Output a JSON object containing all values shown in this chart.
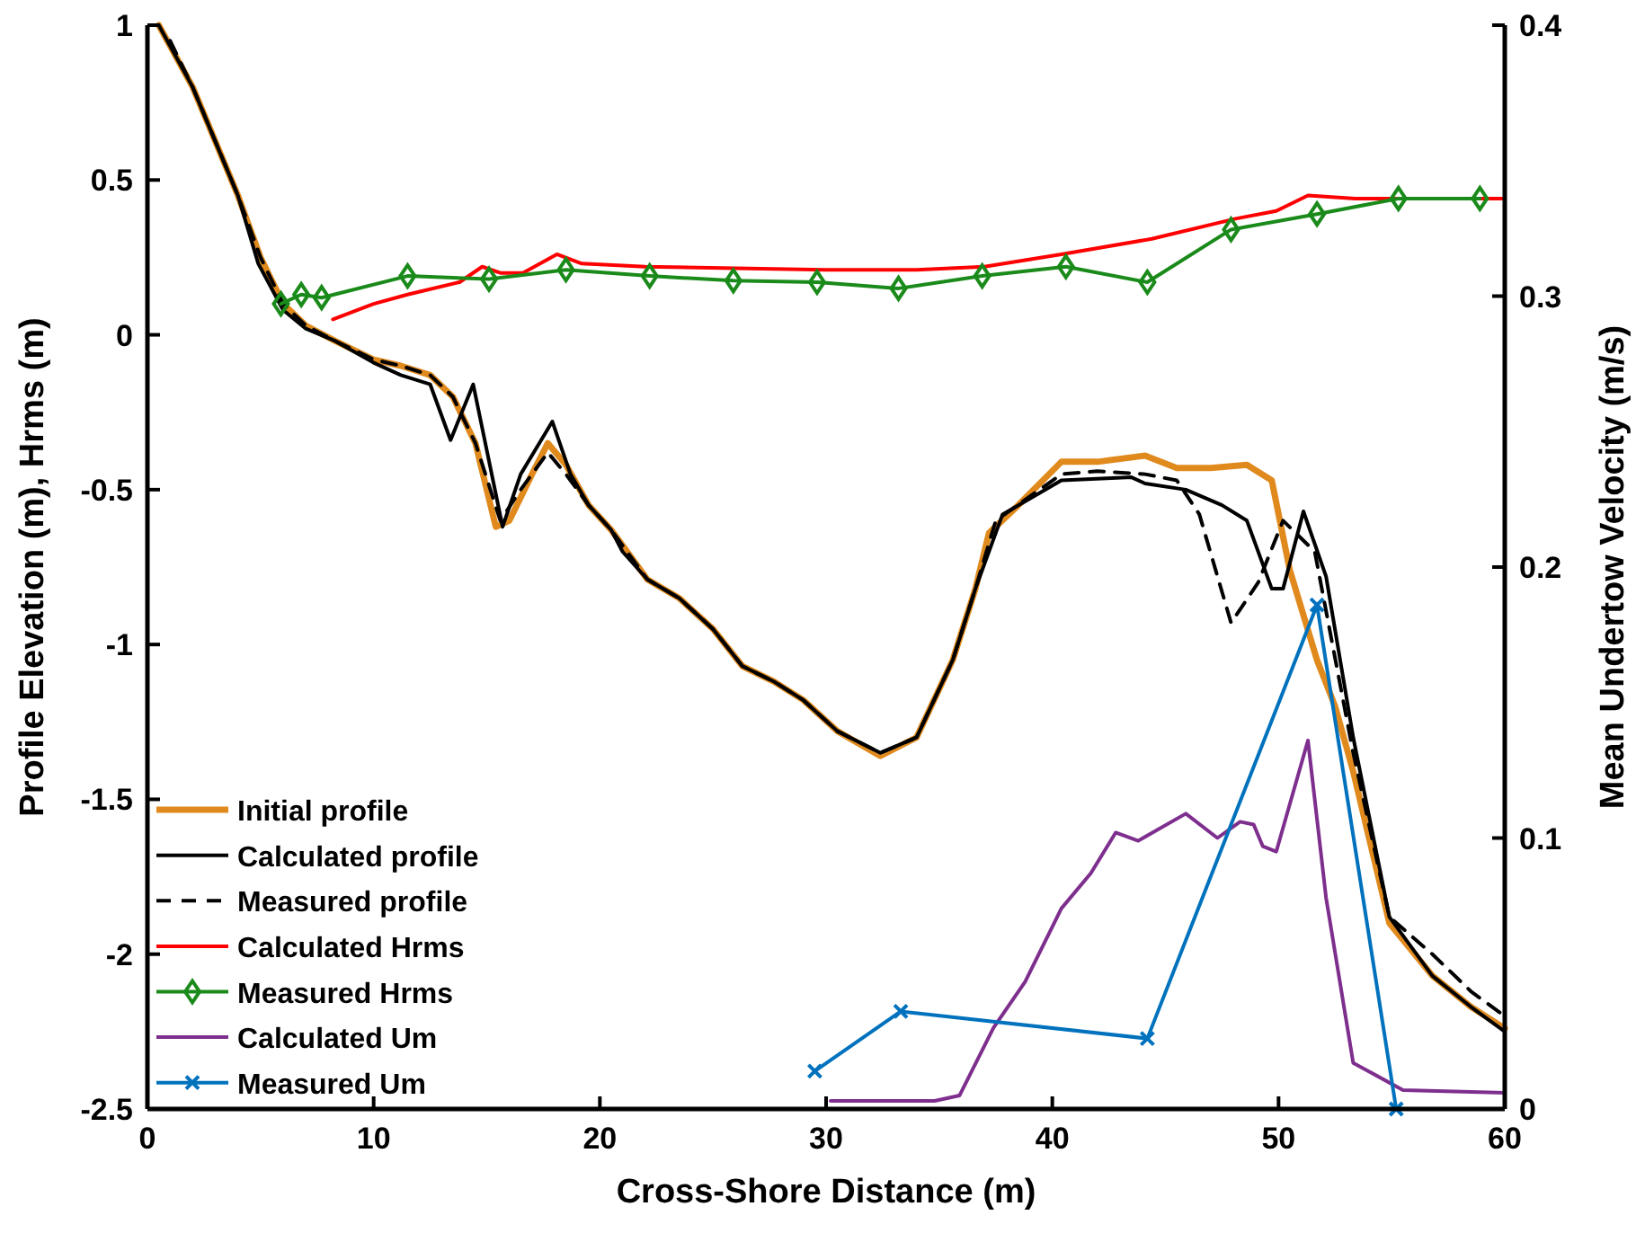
{
  "chart_data": {
    "type": "line",
    "xlabel": "Cross-Shore Distance (m)",
    "ylabel": "Profile Elevation (m), Hrms (m)",
    "y2label": "Mean Undertow Velocity (m/s)",
    "xlim": [
      0,
      60
    ],
    "xticks": [
      0,
      10,
      20,
      30,
      40,
      50,
      60
    ],
    "ylim": [
      -2.5,
      1
    ],
    "yticks": [
      -2.5,
      -2,
      -1.5,
      -1,
      -0.5,
      0,
      0.5,
      1
    ],
    "y2lim": [
      0,
      0.4
    ],
    "y2ticks": [
      0,
      0.1,
      0.2,
      0.3,
      0.4
    ],
    "grid": false,
    "legend": "bottom left",
    "series": [
      {
        "name": "Initial profile",
        "color": "#e08a1e",
        "marker": "none",
        "line_style": "solid",
        "x": [
          0.5,
          2,
          4,
          5,
          6,
          7,
          8.3,
          10,
          11.2,
          12.5,
          13.5,
          14.5,
          15.4,
          16,
          17,
          17.7,
          18.5,
          19.5,
          20.5,
          21,
          22.1,
          23.5,
          25,
          26.3,
          27.7,
          29,
          30.5,
          32.4,
          34,
          35.6,
          36.6,
          37.2,
          38.5,
          40.4,
          42,
          44.1,
          45.5,
          47,
          48.6,
          49.7,
          50.5,
          51.7,
          52.5,
          53.3,
          54.9,
          56.8,
          58.5,
          60
        ],
        "values": [
          1,
          0.8,
          0.45,
          0.25,
          0.1,
          0.03,
          -0.02,
          -0.08,
          -0.1,
          -0.13,
          -0.2,
          -0.35,
          -0.62,
          -0.6,
          -0.45,
          -0.35,
          -0.42,
          -0.55,
          -0.63,
          -0.68,
          -0.79,
          -0.85,
          -0.95,
          -1.07,
          -1.12,
          -1.18,
          -1.28,
          -1.36,
          -1.3,
          -1.05,
          -0.82,
          -0.64,
          -0.55,
          -0.41,
          -0.41,
          -0.39,
          -0.43,
          -0.43,
          -0.42,
          -0.47,
          -0.76,
          -1.05,
          -1.2,
          -1.41,
          -1.9,
          -2.07,
          -2.17,
          -2.24
        ]
      },
      {
        "name": "Calculated profile",
        "color": "#000000",
        "marker": "none",
        "line_style": "solid",
        "x": [
          0.5,
          2,
          4,
          4.9,
          6,
          7,
          8.3,
          10,
          11.2,
          12.5,
          13.4,
          14.4,
          15.7,
          16.5,
          17.9,
          18.7,
          19.5,
          20.5,
          21,
          22.1,
          23.5,
          25,
          26.3,
          27.7,
          29,
          30.5,
          32.4,
          34,
          35.6,
          36.6,
          37.8,
          40.4,
          43.5,
          44.1,
          45.9,
          47.5,
          48.6,
          49.7,
          50.2,
          51.1,
          52.1,
          53.3,
          54.9,
          56.8,
          58.5,
          60
        ],
        "values": [
          1,
          0.8,
          0.45,
          0.23,
          0.08,
          0.02,
          -0.02,
          -0.09,
          -0.13,
          -0.16,
          -0.34,
          -0.16,
          -0.62,
          -0.45,
          -0.28,
          -0.45,
          -0.55,
          -0.63,
          -0.7,
          -0.79,
          -0.85,
          -0.95,
          -1.07,
          -1.12,
          -1.18,
          -1.28,
          -1.35,
          -1.3,
          -1.05,
          -0.82,
          -0.58,
          -0.47,
          -0.46,
          -0.48,
          -0.5,
          -0.55,
          -0.6,
          -0.82,
          -0.82,
          -0.57,
          -0.78,
          -1.3,
          -1.88,
          -2.07,
          -2.17,
          -2.25
        ]
      },
      {
        "name": "Measured profile",
        "color": "#000000",
        "marker": "none",
        "line_style": "dashed",
        "x": [
          1,
          2,
          4,
          5,
          6,
          7,
          8.3,
          10,
          11.2,
          12.5,
          13.5,
          14.5,
          15.6,
          16.5,
          17.7,
          18.5,
          19.5,
          20.5,
          21,
          22.1,
          23.5,
          25,
          26.3,
          27.7,
          29,
          30.5,
          32.4,
          34,
          35.6,
          36.6,
          37.5,
          40.4,
          42,
          44.1,
          45.5,
          46.5,
          47.9,
          49.1,
          50.2,
          51.6,
          53.3,
          54.9,
          56.8,
          58.5,
          60
        ],
        "values": [
          0.95,
          0.8,
          0.45,
          0.25,
          0.1,
          0.03,
          -0.02,
          -0.08,
          -0.1,
          -0.13,
          -0.2,
          -0.35,
          -0.6,
          -0.5,
          -0.38,
          -0.45,
          -0.55,
          -0.63,
          -0.68,
          -0.79,
          -0.85,
          -0.95,
          -1.07,
          -1.12,
          -1.18,
          -1.28,
          -1.35,
          -1.3,
          -1.05,
          -0.82,
          -0.6,
          -0.45,
          -0.44,
          -0.45,
          -0.47,
          -0.58,
          -0.93,
          -0.8,
          -0.6,
          -0.7,
          -1.35,
          -1.88,
          -2.0,
          -2.12,
          -2.2
        ]
      },
      {
        "name": "Calculated Hrms",
        "color": "#ff0000",
        "marker": "none",
        "line_style": "solid",
        "x": [
          8.2,
          10,
          11.5,
          13.8,
          14.8,
          15.6,
          16.6,
          18.1,
          19.2,
          22,
          26,
          30,
          34,
          37,
          40.4,
          44.4,
          48.1,
          49.9,
          51.3,
          53.4,
          55.5,
          60
        ],
        "values": [
          0.05,
          0.1,
          0.13,
          0.17,
          0.22,
          0.2,
          0.2,
          0.26,
          0.23,
          0.22,
          0.215,
          0.21,
          0.21,
          0.22,
          0.26,
          0.31,
          0.375,
          0.4,
          0.45,
          0.44,
          0.44,
          0.44
        ]
      },
      {
        "name": "Measured Hrms",
        "color": "#1a8a1a",
        "marker": "diamond",
        "line_style": "solid",
        "x": [
          5.9,
          6.8,
          7.7,
          11.5,
          15.1,
          18.5,
          22.2,
          25.9,
          29.6,
          33.2,
          36.9,
          40.6,
          44.2,
          47.9,
          51.7,
          55.3,
          58.9
        ],
        "values": [
          0.1,
          0.13,
          0.12,
          0.19,
          0.18,
          0.21,
          0.19,
          0.175,
          0.17,
          0.15,
          0.19,
          0.22,
          0.17,
          0.34,
          0.39,
          0.44,
          0.44
        ]
      },
      {
        "name": "Calculated Um",
        "color": "#7e2f8e",
        "marker": "none",
        "line_style": "solid",
        "axis": "y2",
        "x": [
          30.2,
          31.6,
          34.8,
          35.9,
          37.4,
          38.8,
          40.4,
          41.7,
          42.8,
          43.8,
          45.9,
          47.3,
          48.3,
          48.9,
          49.3,
          49.9,
          51.3,
          52.1,
          53.3,
          55.5,
          60
        ],
        "values": [
          0.003,
          0.003,
          0.003,
          0.005,
          0.03,
          0.047,
          0.074,
          0.087,
          0.102,
          0.099,
          0.109,
          0.1,
          0.106,
          0.105,
          0.097,
          0.095,
          0.136,
          0.078,
          0.017,
          0.007,
          0.006
        ]
      },
      {
        "name": "Measured Um",
        "color": "#0072bd",
        "marker": "cross",
        "line_style": "solid",
        "axis": "y2",
        "x": [
          29.5,
          33.3,
          44.2,
          51.7,
          55.2
        ],
        "values": [
          0.014,
          0.036,
          0.026,
          0.186,
          0
        ]
      }
    ]
  }
}
